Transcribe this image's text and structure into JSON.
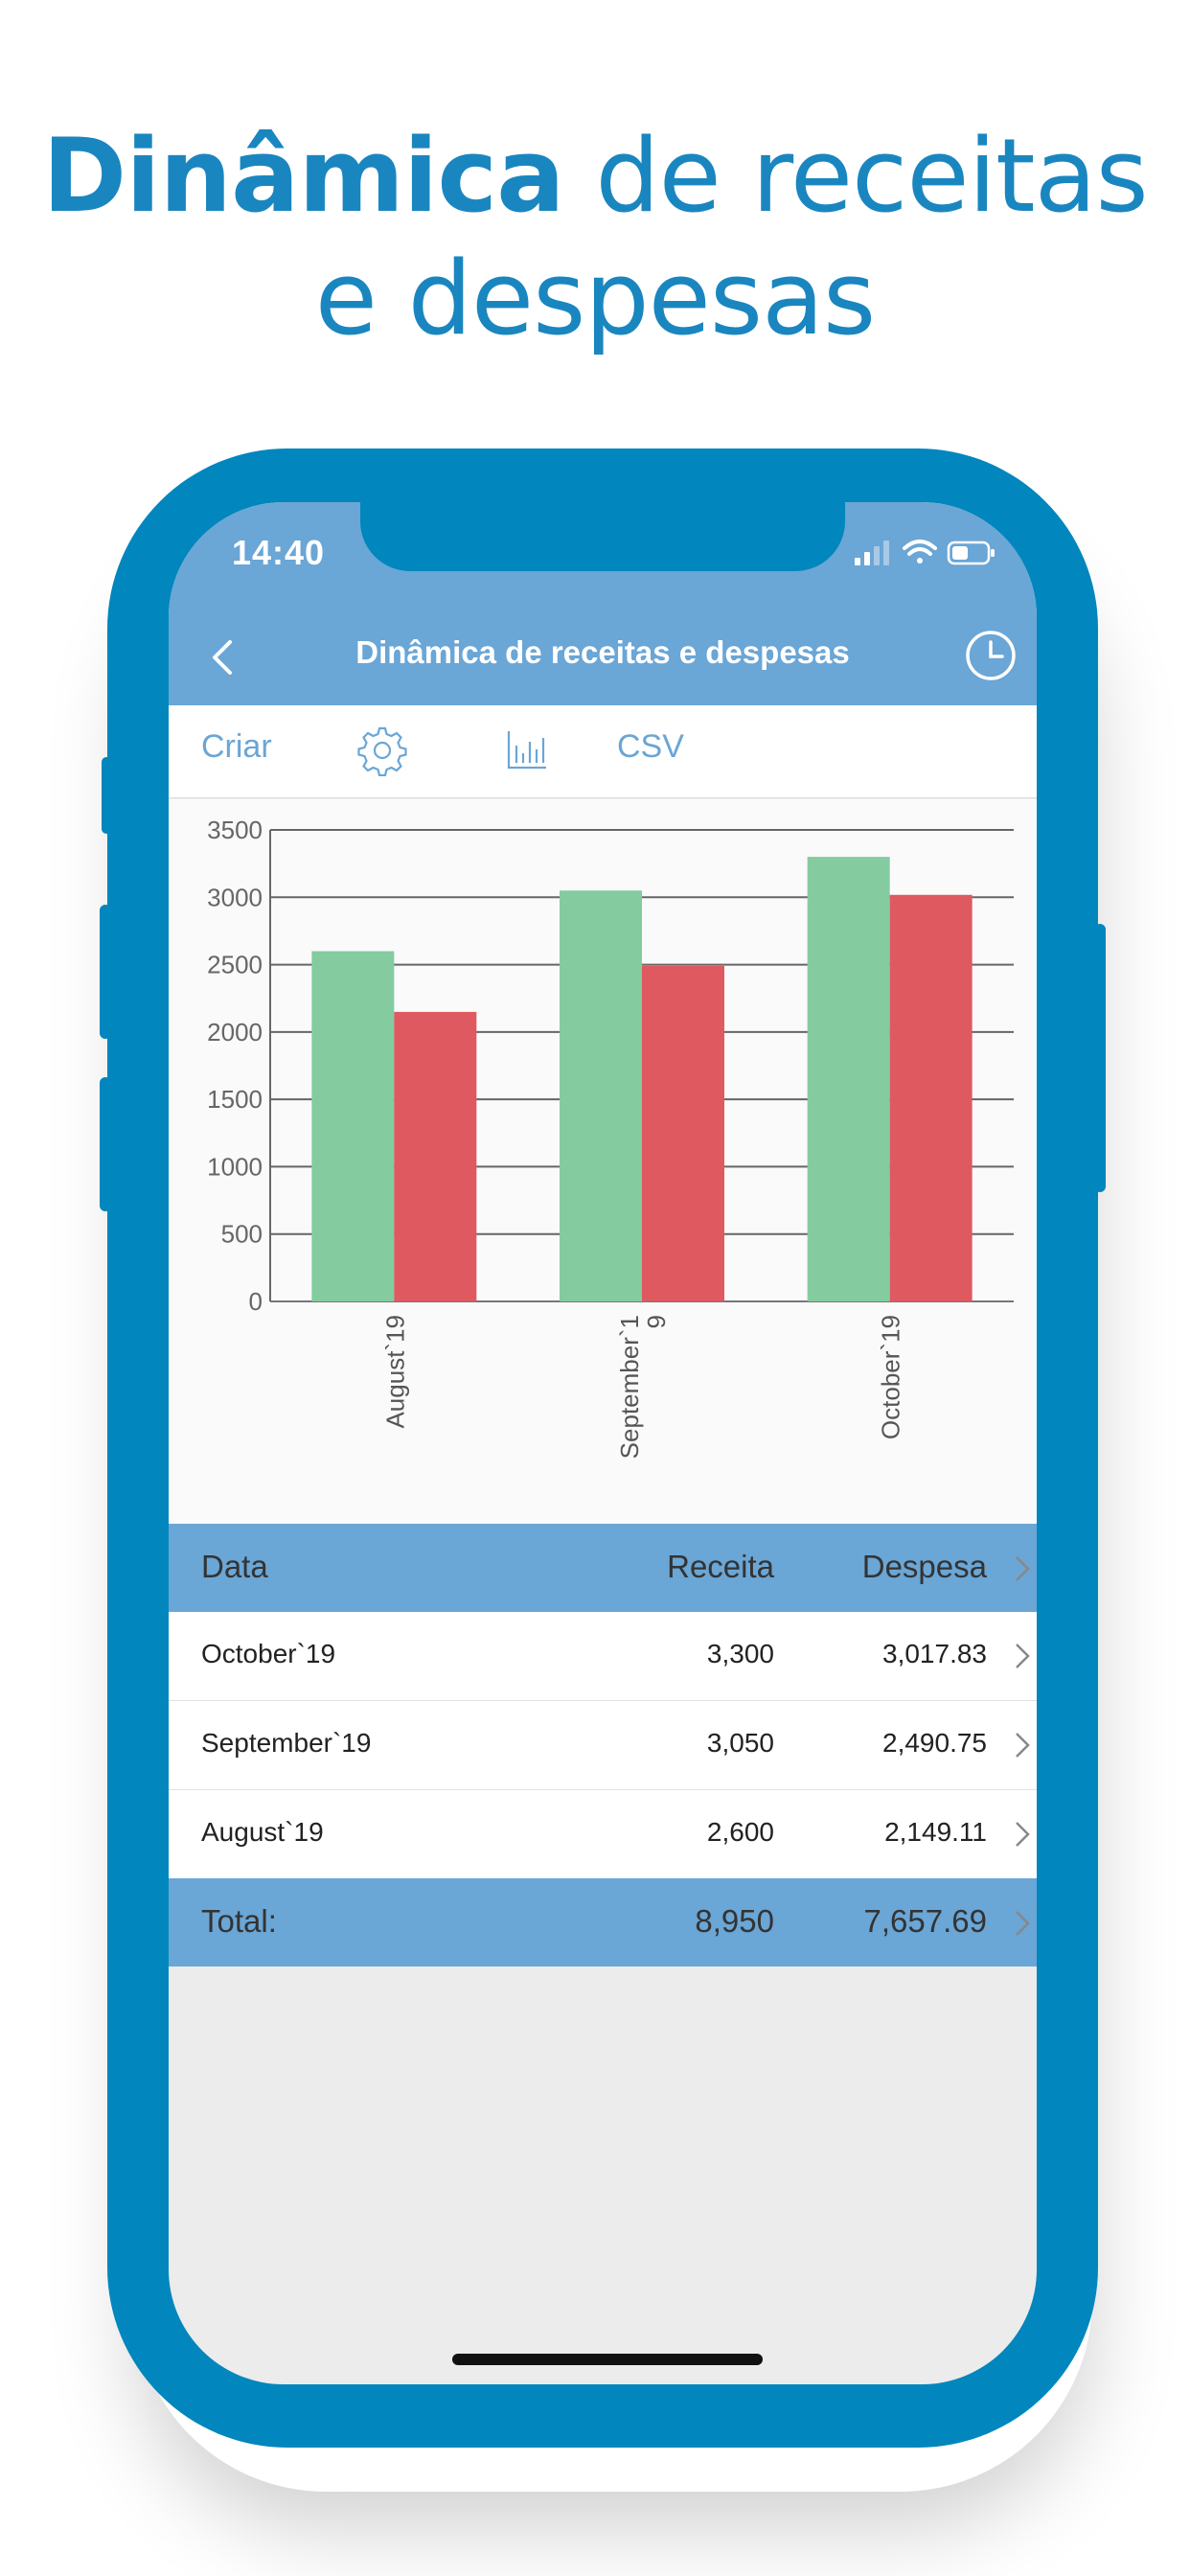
{
  "headline": {
    "bold": "Dinâmica",
    "rest": " de receitas",
    "line2": "e despesas"
  },
  "status_bar": {
    "time": "14:40"
  },
  "nav": {
    "title": "Dinâmica de receitas e despesas"
  },
  "toolbar": {
    "create_label": "Criar",
    "csv_label": "CSV"
  },
  "chart_data": {
    "type": "bar",
    "categories": [
      "August`19",
      "September`19",
      "October`19"
    ],
    "category_labels_display": [
      "August`19",
      "September`1\n9",
      "October`19"
    ],
    "series": [
      {
        "values": [
          2600,
          3050,
          3300
        ],
        "color": "#84cba0"
      },
      {
        "values": [
          2149.11,
          2490.75,
          3017.83
        ],
        "color": "#de5a60"
      }
    ],
    "yticks": [
      0,
      500,
      1000,
      1500,
      2000,
      2500,
      3000,
      3500
    ],
    "ylim": [
      0,
      3500
    ],
    "grid": true
  },
  "table": {
    "headers": {
      "date": "Data",
      "income": "Receita",
      "expense": "Despesa"
    },
    "rows": [
      {
        "date": "October`19",
        "income": "3,300",
        "expense": "3,017.83"
      },
      {
        "date": "September`19",
        "income": "3,050",
        "expense": "2,490.75"
      },
      {
        "date": "August`19",
        "income": "2,600",
        "expense": "2,149.11"
      }
    ],
    "total": {
      "label": "Total:",
      "income": "8,950",
      "expense": "7,657.69"
    }
  },
  "colors": {
    "brand": "#0186bd",
    "header": "#6aa6d6",
    "income": "#84cba0",
    "expense": "#de5a60"
  }
}
